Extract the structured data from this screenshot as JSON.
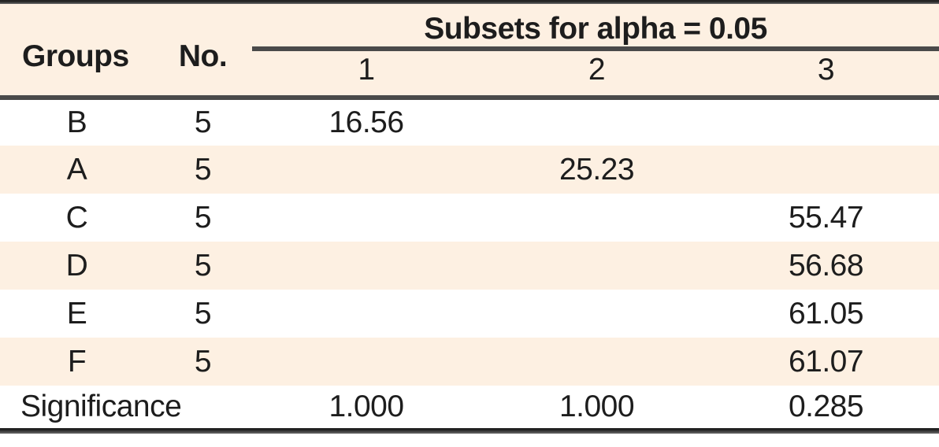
{
  "table": {
    "header": {
      "groups": "Groups",
      "no": "No.",
      "subsets_title": "Subsets for alpha = 0.05",
      "subset_cols": [
        "1",
        "2",
        "3"
      ]
    },
    "rows": [
      {
        "group": "B",
        "n": "5",
        "s1": "16.56",
        "s2": "",
        "s3": ""
      },
      {
        "group": "A",
        "n": "5",
        "s1": "",
        "s2": "25.23",
        "s3": ""
      },
      {
        "group": "C",
        "n": "5",
        "s1": "",
        "s2": "",
        "s3": "55.47"
      },
      {
        "group": "D",
        "n": "5",
        "s1": "",
        "s2": "",
        "s3": "56.68"
      },
      {
        "group": "E",
        "n": "5",
        "s1": "",
        "s2": "",
        "s3": "61.05"
      },
      {
        "group": "F",
        "n": "5",
        "s1": "",
        "s2": "",
        "s3": "61.07"
      }
    ],
    "significance": {
      "label": "Significance",
      "values": [
        "1.000",
        "1.000",
        "0.285"
      ]
    }
  },
  "colors": {
    "band": "#fdf0e2",
    "text": "#1d1d1d",
    "rule_dark": "#252525",
    "rule_gray": "#666666"
  }
}
